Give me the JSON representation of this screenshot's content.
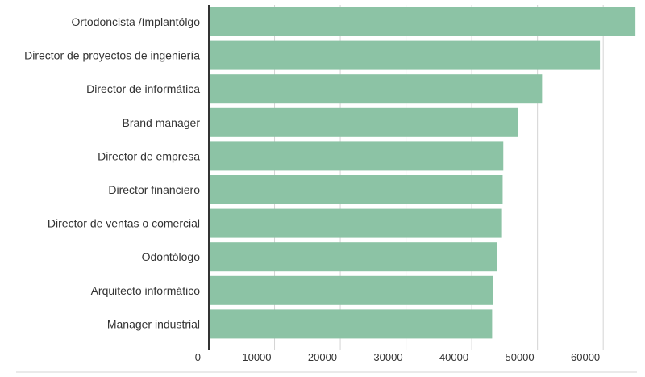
{
  "chart_data": {
    "type": "bar",
    "orientation": "horizontal",
    "bar_color": "#8cc3a5",
    "grid_color": "#d4d4d4",
    "axis_color": "#333333",
    "grid": true,
    "xlim": [
      0,
      66000
    ],
    "x_ticks": [
      {
        "value": 0,
        "label": "0"
      },
      {
        "value": 10000,
        "label": "10000"
      },
      {
        "value": 20000,
        "label": "20000"
      },
      {
        "value": 30000,
        "label": "30000"
      },
      {
        "value": 40000,
        "label": "40000"
      },
      {
        "value": 50000,
        "label": "50000"
      },
      {
        "value": 60000,
        "label": "60000"
      }
    ],
    "categories": [
      "Ortodoncista /Implantólgo",
      "Director de proyectos de ingeniería",
      "Director de informática",
      "Brand manager",
      "Director de empresa",
      "Director financiero",
      "Director de ventas o comercial",
      "Odontólogo",
      "Arquitecto informático",
      "Manager industrial"
    ],
    "values": [
      64900,
      59500,
      50700,
      47100,
      44800,
      44700,
      44600,
      43900,
      43200,
      43100
    ],
    "title": "",
    "xlabel": "",
    "ylabel": ""
  }
}
